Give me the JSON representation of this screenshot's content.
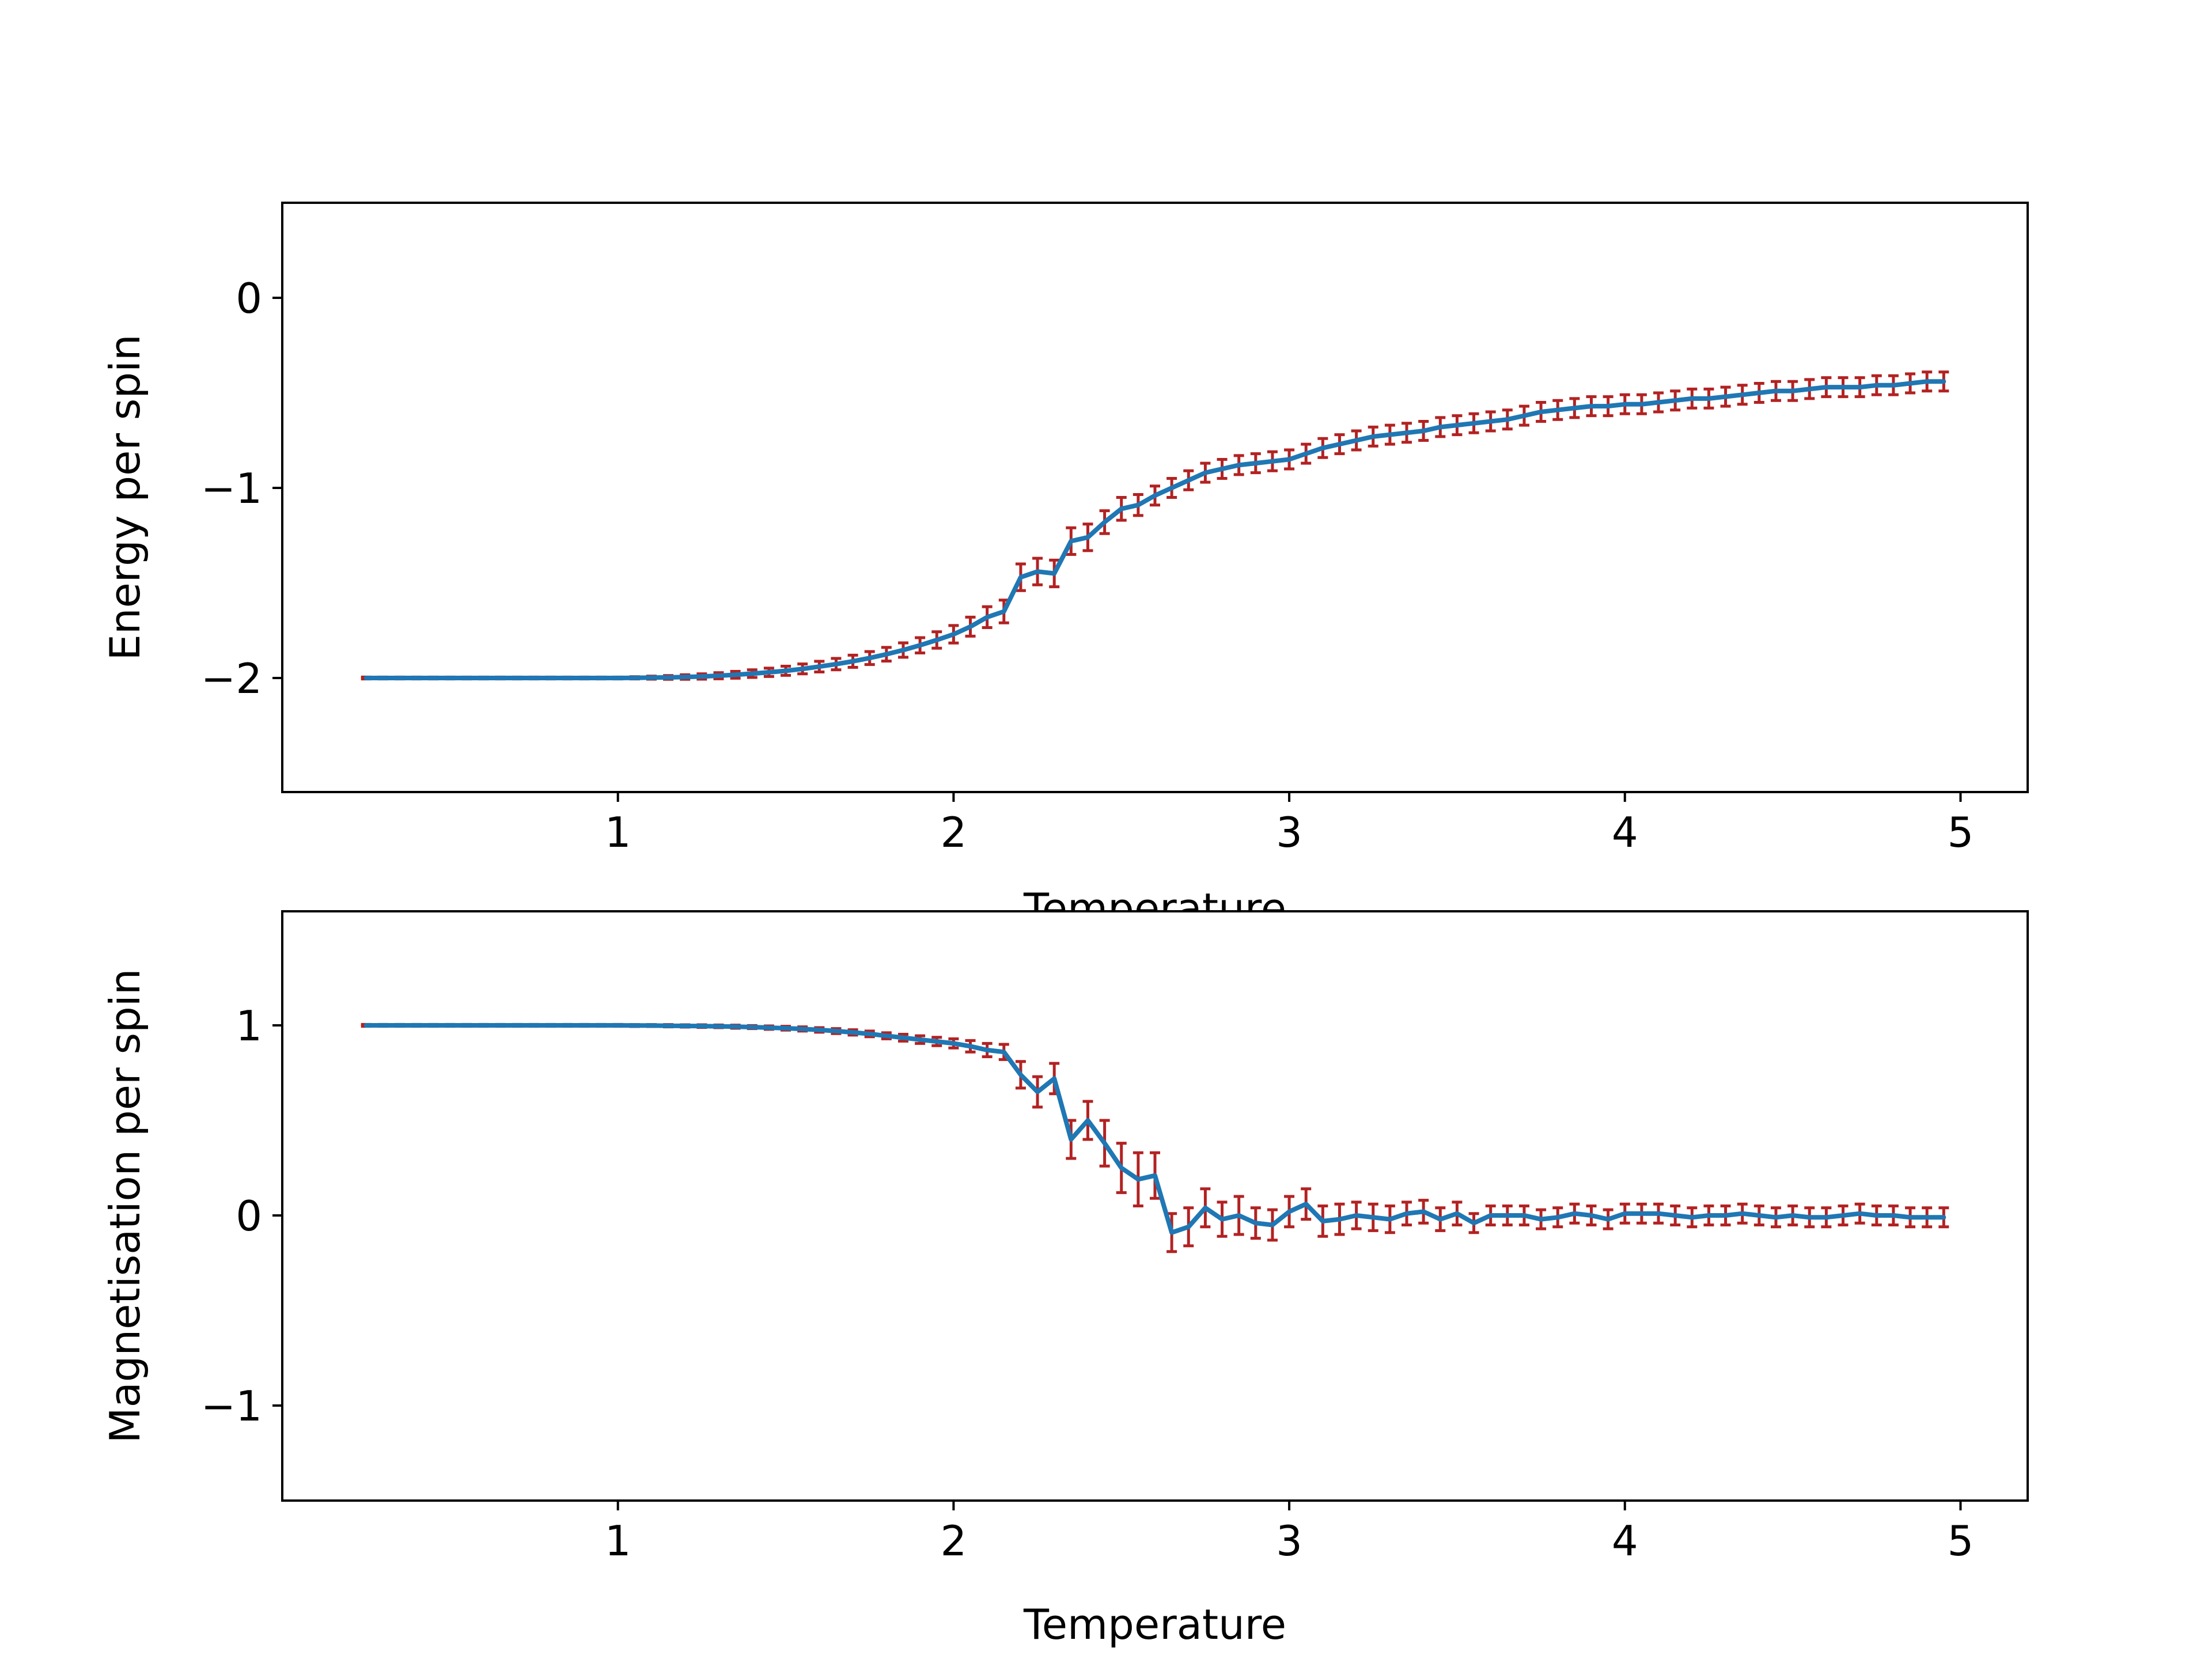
{
  "chart_data": [
    {
      "type": "line",
      "title": "",
      "xlabel": "Temperature",
      "ylabel": "Energy per spin",
      "xlim": [
        0.0,
        5.2
      ],
      "ylim": [
        -2.6,
        0.5
      ],
      "xticks": [
        1,
        2,
        3,
        4,
        5
      ],
      "yticks": [
        -2,
        -1,
        0
      ],
      "grid": false,
      "errorbars": true,
      "series": [
        {
          "x": [
            0.25,
            0.3,
            0.35,
            0.4,
            0.45,
            0.5,
            0.55,
            0.6,
            0.65,
            0.7,
            0.75,
            0.8,
            0.85,
            0.9,
            0.95,
            1.0,
            1.05,
            1.1,
            1.15,
            1.2,
            1.25,
            1.3,
            1.35,
            1.4,
            1.45,
            1.5,
            1.55,
            1.6,
            1.65,
            1.7,
            1.75,
            1.8,
            1.85,
            1.9,
            1.95,
            2.0,
            2.05,
            2.1,
            2.15,
            2.2,
            2.25,
            2.3,
            2.35,
            2.4,
            2.45,
            2.5,
            2.55,
            2.6,
            2.65,
            2.7,
            2.75,
            2.8,
            2.85,
            2.9,
            2.95,
            3.0,
            3.05,
            3.1,
            3.15,
            3.2,
            3.25,
            3.3,
            3.35,
            3.4,
            3.45,
            3.5,
            3.55,
            3.6,
            3.65,
            3.7,
            3.75,
            3.8,
            3.85,
            3.9,
            3.95,
            4.0,
            4.05,
            4.1,
            4.15,
            4.2,
            4.25,
            4.3,
            4.35,
            4.4,
            4.45,
            4.5,
            4.55,
            4.6,
            4.65,
            4.7,
            4.75,
            4.8,
            4.85,
            4.9,
            4.95
          ],
          "y": [
            -2.0,
            -2.0,
            -2.0,
            -2.0,
            -2.0,
            -2.0,
            -2.0,
            -2.0,
            -2.0,
            -2.0,
            -2.0,
            -2.0,
            -2.0,
            -2.0,
            -2.0,
            -2.0,
            -1.999,
            -1.998,
            -1.997,
            -1.995,
            -1.992,
            -1.988,
            -1.983,
            -1.977,
            -1.97,
            -1.962,
            -1.952,
            -1.94,
            -1.927,
            -1.912,
            -1.895,
            -1.875,
            -1.853,
            -1.828,
            -1.8,
            -1.77,
            -1.73,
            -1.68,
            -1.65,
            -1.47,
            -1.44,
            -1.45,
            -1.28,
            -1.26,
            -1.18,
            -1.11,
            -1.09,
            -1.04,
            -1.0,
            -0.96,
            -0.92,
            -0.9,
            -0.88,
            -0.87,
            -0.86,
            -0.85,
            -0.82,
            -0.79,
            -0.77,
            -0.75,
            -0.73,
            -0.72,
            -0.71,
            -0.7,
            -0.68,
            -0.67,
            -0.66,
            -0.65,
            -0.64,
            -0.62,
            -0.6,
            -0.59,
            -0.58,
            -0.57,
            -0.57,
            -0.56,
            -0.56,
            -0.55,
            -0.54,
            -0.53,
            -0.53,
            -0.52,
            -0.51,
            -0.5,
            -0.49,
            -0.49,
            -0.48,
            -0.47,
            -0.47,
            -0.47,
            -0.46,
            -0.46,
            -0.45,
            -0.44,
            -0.44
          ],
          "yerr": [
            0.005,
            0.005,
            0.005,
            0.005,
            0.005,
            0.005,
            0.005,
            0.005,
            0.005,
            0.005,
            0.005,
            0.005,
            0.005,
            0.005,
            0.005,
            0.005,
            0.006,
            0.008,
            0.01,
            0.012,
            0.014,
            0.016,
            0.018,
            0.02,
            0.022,
            0.024,
            0.026,
            0.028,
            0.03,
            0.032,
            0.034,
            0.036,
            0.038,
            0.04,
            0.043,
            0.046,
            0.05,
            0.055,
            0.06,
            0.07,
            0.07,
            0.07,
            0.07,
            0.07,
            0.06,
            0.06,
            0.055,
            0.05,
            0.05,
            0.05,
            0.05,
            0.05,
            0.05,
            0.05,
            0.05,
            0.05,
            0.05,
            0.05,
            0.05,
            0.05,
            0.05,
            0.05,
            0.05,
            0.05,
            0.05,
            0.05,
            0.05,
            0.05,
            0.05,
            0.05,
            0.05,
            0.05,
            0.05,
            0.05,
            0.05,
            0.05,
            0.05,
            0.05,
            0.05,
            0.05,
            0.05,
            0.05,
            0.05,
            0.05,
            0.05,
            0.05,
            0.05,
            0.05,
            0.05,
            0.05,
            0.05,
            0.05,
            0.05,
            0.05,
            0.05
          ]
        }
      ]
    },
    {
      "type": "line",
      "title": "",
      "xlabel": "Temperature",
      "ylabel": "Magnetisation per spin",
      "xlim": [
        0.0,
        5.2
      ],
      "ylim": [
        -1.5,
        1.6
      ],
      "xticks": [
        1,
        2,
        3,
        4,
        5
      ],
      "yticks": [
        -1,
        0,
        1
      ],
      "grid": false,
      "errorbars": true,
      "series": [
        {
          "x": [
            0.25,
            0.3,
            0.35,
            0.4,
            0.45,
            0.5,
            0.55,
            0.6,
            0.65,
            0.7,
            0.75,
            0.8,
            0.85,
            0.9,
            0.95,
            1.0,
            1.05,
            1.1,
            1.15,
            1.2,
            1.25,
            1.3,
            1.35,
            1.4,
            1.45,
            1.5,
            1.55,
            1.6,
            1.65,
            1.7,
            1.75,
            1.8,
            1.85,
            1.9,
            1.95,
            2.0,
            2.05,
            2.1,
            2.15,
            2.2,
            2.25,
            2.3,
            2.35,
            2.4,
            2.45,
            2.5,
            2.55,
            2.6,
            2.65,
            2.7,
            2.75,
            2.8,
            2.85,
            2.9,
            2.95,
            3.0,
            3.05,
            3.1,
            3.15,
            3.2,
            3.25,
            3.3,
            3.35,
            3.4,
            3.45,
            3.5,
            3.55,
            3.6,
            3.65,
            3.7,
            3.75,
            3.8,
            3.85,
            3.9,
            3.95,
            4.0,
            4.05,
            4.1,
            4.15,
            4.2,
            4.25,
            4.3,
            4.35,
            4.4,
            4.45,
            4.5,
            4.55,
            4.6,
            4.65,
            4.7,
            4.75,
            4.8,
            4.85,
            4.9,
            4.95
          ],
          "y": [
            1.0,
            1.0,
            1.0,
            1.0,
            1.0,
            1.0,
            1.0,
            1.0,
            1.0,
            1.0,
            1.0,
            1.0,
            1.0,
            1.0,
            1.0,
            1.0,
            0.999,
            0.999,
            0.998,
            0.997,
            0.996,
            0.995,
            0.993,
            0.991,
            0.988,
            0.985,
            0.981,
            0.976,
            0.97,
            0.963,
            0.955,
            0.945,
            0.935,
            0.925,
            0.915,
            0.905,
            0.89,
            0.87,
            0.86,
            0.74,
            0.65,
            0.72,
            0.4,
            0.5,
            0.38,
            0.25,
            0.19,
            0.21,
            -0.09,
            -0.06,
            0.04,
            -0.02,
            0.0,
            -0.04,
            -0.05,
            0.02,
            0.06,
            -0.03,
            -0.02,
            0.0,
            -0.01,
            -0.02,
            0.01,
            0.02,
            -0.02,
            0.01,
            -0.04,
            0.0,
            0.0,
            0.0,
            -0.02,
            -0.01,
            0.01,
            0.0,
            -0.02,
            0.01,
            0.01,
            0.01,
            0.0,
            -0.01,
            0.0,
            0.0,
            0.01,
            0.0,
            -0.01,
            0.0,
            -0.01,
            -0.01,
            0.0,
            0.01,
            0.0,
            0.0,
            -0.01,
            -0.01,
            -0.01
          ],
          "yerr": [
            0.005,
            0.005,
            0.005,
            0.005,
            0.005,
            0.005,
            0.005,
            0.005,
            0.005,
            0.005,
            0.005,
            0.005,
            0.005,
            0.005,
            0.005,
            0.005,
            0.005,
            0.005,
            0.006,
            0.006,
            0.007,
            0.007,
            0.008,
            0.008,
            0.009,
            0.01,
            0.011,
            0.012,
            0.013,
            0.014,
            0.015,
            0.016,
            0.018,
            0.02,
            0.022,
            0.024,
            0.03,
            0.035,
            0.04,
            0.07,
            0.08,
            0.08,
            0.1,
            0.1,
            0.12,
            0.13,
            0.14,
            0.12,
            0.1,
            0.1,
            0.1,
            0.09,
            0.1,
            0.08,
            0.08,
            0.08,
            0.08,
            0.08,
            0.08,
            0.07,
            0.07,
            0.07,
            0.06,
            0.06,
            0.06,
            0.06,
            0.05,
            0.05,
            0.05,
            0.05,
            0.05,
            0.05,
            0.05,
            0.05,
            0.05,
            0.05,
            0.05,
            0.05,
            0.05,
            0.05,
            0.05,
            0.05,
            0.05,
            0.05,
            0.05,
            0.05,
            0.05,
            0.05,
            0.05,
            0.05,
            0.05,
            0.05,
            0.05,
            0.05,
            0.05
          ]
        }
      ]
    }
  ],
  "colors": {
    "line": "#1f77b4",
    "errorbar": "#b22222",
    "axis": "#000000",
    "background": "#ffffff"
  }
}
